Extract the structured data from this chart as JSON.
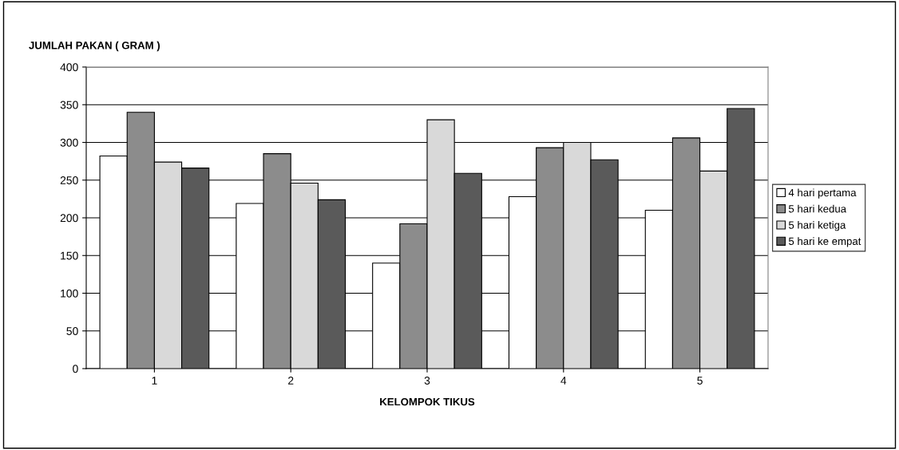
{
  "chart_data": {
    "type": "bar",
    "title": "JUMLAH PAKAN ( GRAM )",
    "xlabel": "KELOMPOK TIKUS",
    "categories": [
      "1",
      "2",
      "3",
      "4",
      "5"
    ],
    "series": [
      {
        "name": "4 hari pertama",
        "color": "#ffffff",
        "values": [
          282,
          219,
          140,
          228,
          210
        ]
      },
      {
        "name": "5 hari kedua",
        "color": "#8c8c8c",
        "values": [
          340,
          285,
          192,
          293,
          306
        ]
      },
      {
        "name": "5 hari ketiga",
        "color": "#d9d9d9",
        "values": [
          274,
          246,
          330,
          300,
          262
        ]
      },
      {
        "name": "5 hari ke empat",
        "color": "#5a5a5a",
        "values": [
          266,
          224,
          259,
          277,
          345
        ]
      }
    ],
    "ylim": [
      0,
      400
    ],
    "yticks": [
      0,
      50,
      100,
      150,
      200,
      250,
      300,
      350,
      400
    ],
    "grid": "y",
    "legend": "right"
  }
}
